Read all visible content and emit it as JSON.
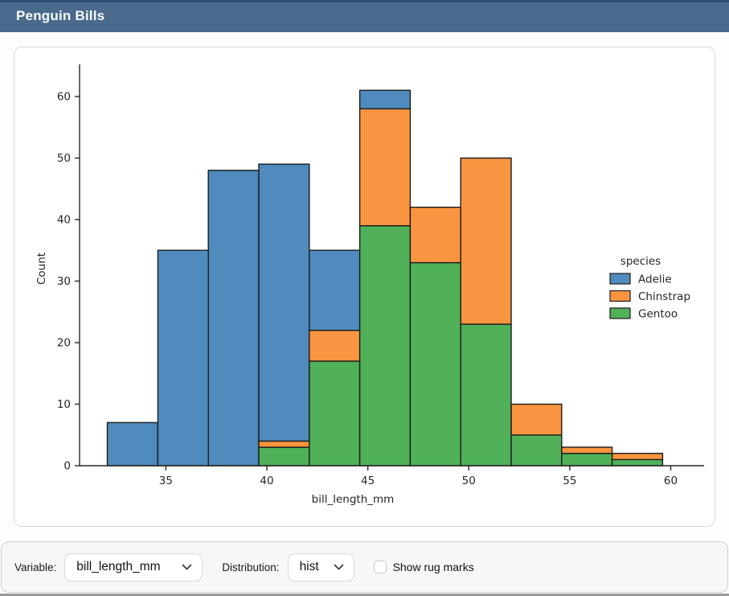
{
  "header": {
    "title": "Penguin Bills"
  },
  "chart_data": {
    "type": "bar",
    "subtype": "stacked-histogram",
    "title": "",
    "xlabel": "bill_length_mm",
    "ylabel": "Count",
    "bin_edges": [
      32.1,
      34.6,
      37.1,
      39.6,
      42.1,
      44.6,
      47.1,
      49.6,
      52.1,
      54.6,
      57.1,
      59.6
    ],
    "xlim": [
      30.725,
      60.975
    ],
    "ylim": [
      0,
      64.05
    ],
    "xticks": [
      35,
      40,
      45,
      50,
      55,
      60
    ],
    "yticks": [
      0,
      10,
      20,
      30,
      40,
      50,
      60
    ],
    "grid": false,
    "legend": {
      "title": "species",
      "position": "right",
      "frame": false
    },
    "series": [
      {
        "name": "Adelie",
        "color": "#4f8bbc",
        "values": [
          7,
          35,
          48,
          45,
          13,
          3,
          0,
          0,
          0,
          0,
          0
        ]
      },
      {
        "name": "Chinstrap",
        "color": "#f99440",
        "values": [
          0,
          0,
          0,
          1,
          5,
          19,
          9,
          27,
          5,
          1,
          1
        ]
      },
      {
        "name": "Gentoo",
        "color": "#50b159",
        "values": [
          0,
          0,
          0,
          3,
          17,
          39,
          33,
          23,
          5,
          2,
          1
        ]
      }
    ],
    "stacked_totals": [
      7,
      35,
      48,
      49,
      35,
      61,
      42,
      50,
      10,
      3,
      2
    ],
    "stack_order_bottom_to_top": [
      "Gentoo",
      "Chinstrap",
      "Adelie"
    ],
    "bar_edge_color": "#1b1b1b",
    "axis_color": "#262626",
    "text_color": "#262626"
  },
  "footer": {
    "variable_label": "Variable:",
    "variable_value": "bill_length_mm",
    "distribution_label": "Distribution:",
    "distribution_value": "hist",
    "rug_label": "Show rug marks",
    "rug_checked": false
  },
  "colors": {
    "header_bg": "#4a6a8c",
    "header_top_strip": "#2e4d6e",
    "card_border": "#d8d8d8",
    "footer_bg": "#f7f7f7",
    "footer_border": "#cfcfcf"
  }
}
